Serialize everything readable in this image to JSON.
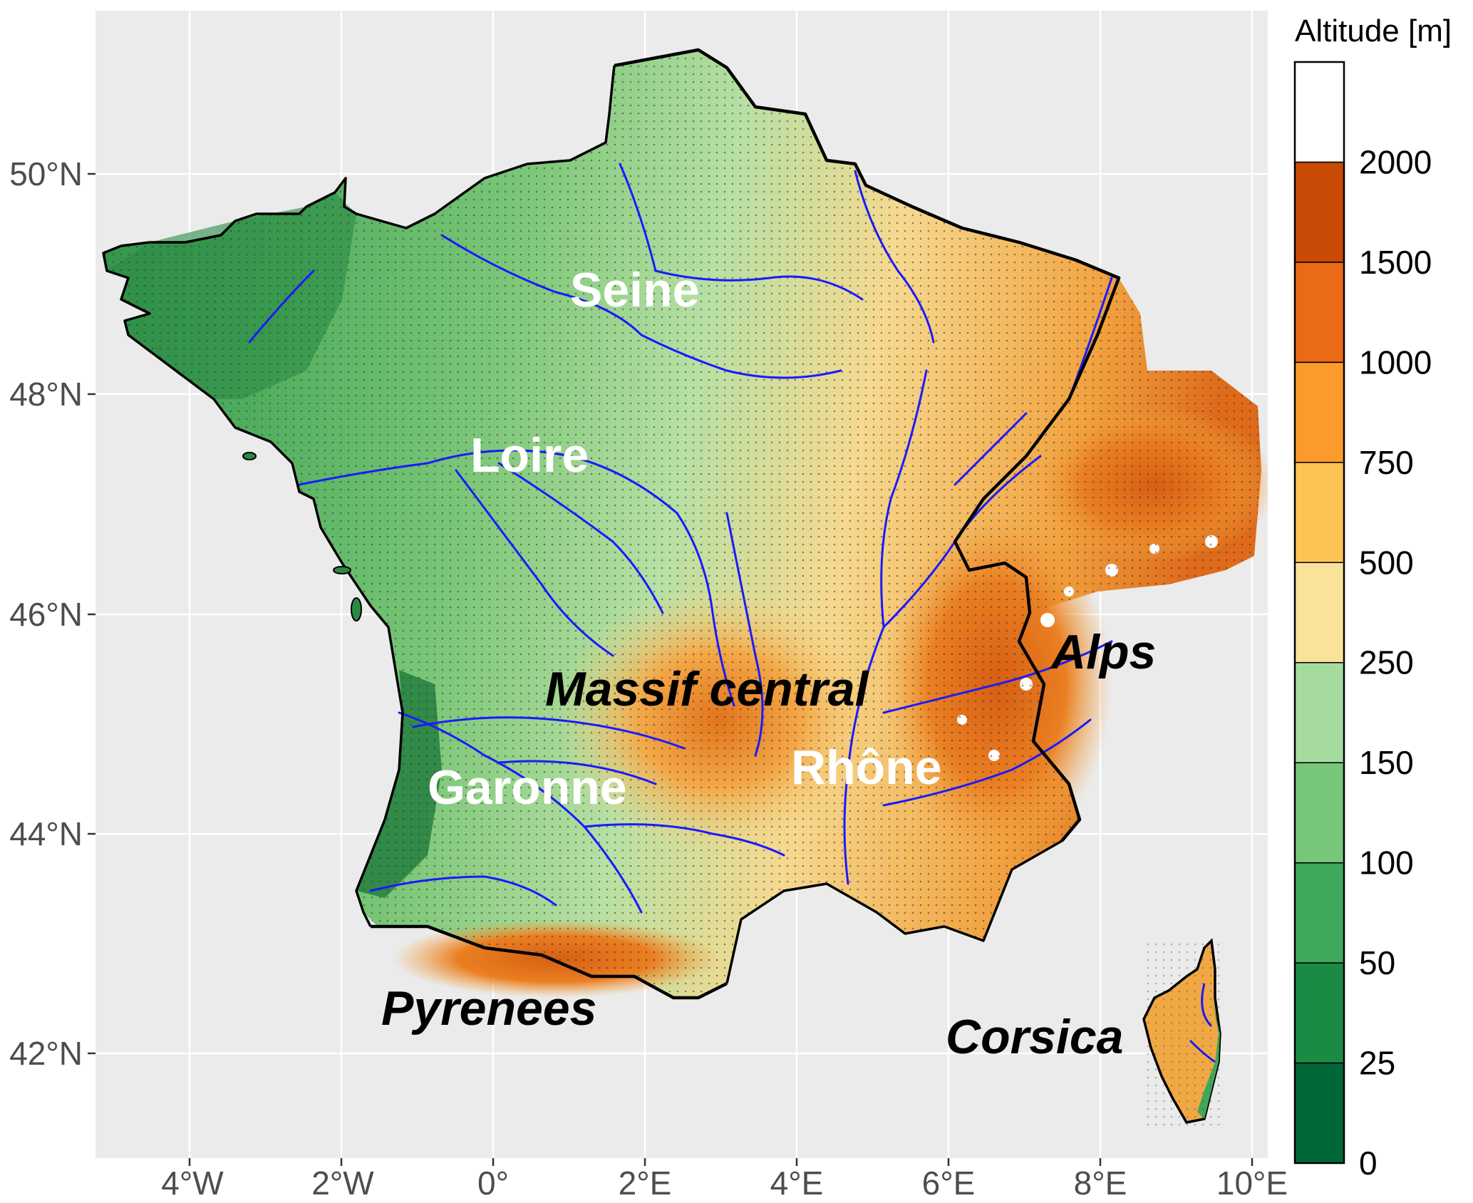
{
  "map": {
    "lon_ticks": [
      "4°W",
      "2°W",
      "0°",
      "2°E",
      "4°E",
      "6°E",
      "8°E",
      "10°E"
    ],
    "lat_ticks": [
      "50°N",
      "48°N",
      "46°N",
      "44°N",
      "42°N"
    ],
    "region_labels": {
      "seine": "Seine",
      "loire": "Loire",
      "garonne": "Garonne",
      "rhone": "Rhône",
      "massif_central": "Massif central",
      "alps": "Alps",
      "pyrenees": "Pyrenees",
      "corsica": "Corsica"
    },
    "colors": {
      "panel_bg": "#ebebeb",
      "grid": "#ffffff",
      "rivers": "#1a1aff",
      "border": "#000000"
    }
  },
  "legend": {
    "title": "Altitude [m]",
    "breaks": [
      "0",
      "25",
      "50",
      "100",
      "150",
      "250",
      "500",
      "750",
      "1000",
      "1500",
      "2000"
    ],
    "colors": [
      "#006837",
      "#1a8a45",
      "#3fa85a",
      "#78c679",
      "#a6dba0",
      "#fae29a",
      "#fdc454",
      "#fd9a2c",
      "#ea6a16",
      "#c84a04",
      "#ffffff"
    ]
  }
}
